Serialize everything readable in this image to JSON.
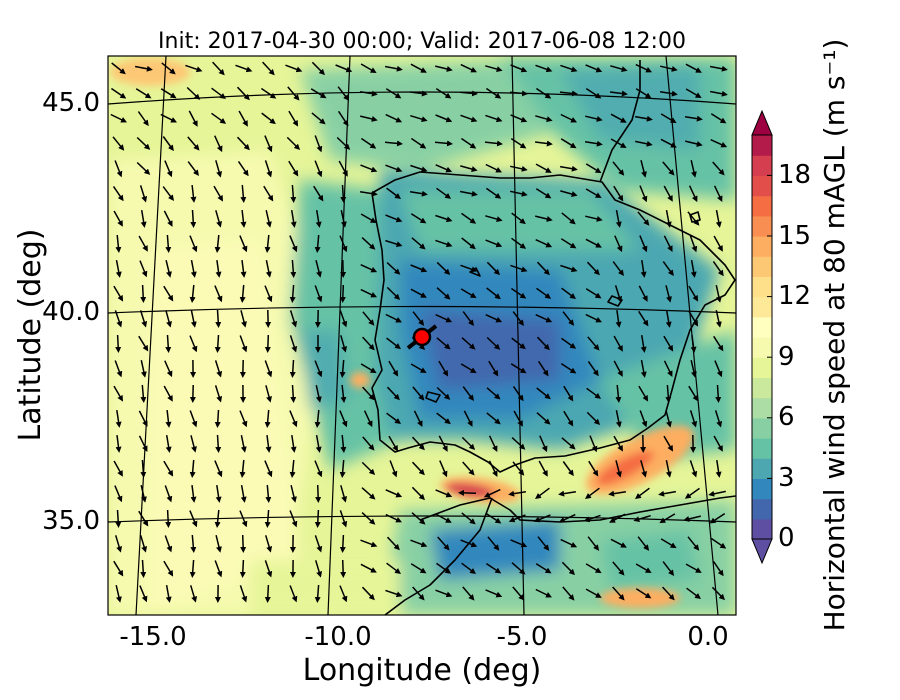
{
  "title": "Init: 2017-04-30 00:00; Valid: 2017-06-08 12:00",
  "x_axis": {
    "label": "Longitude (deg)",
    "ticks": [
      "-15.0",
      "-10.0",
      "-5.0",
      "0.0"
    ]
  },
  "y_axis": {
    "label": "Latitude (deg)",
    "ticks": [
      "45.0",
      "40.0",
      "35.0"
    ]
  },
  "colorbar": {
    "label": "Horizontal wind speed at 80 mAGL (m s⁻¹)",
    "ticks": [
      "0",
      "3",
      "6",
      "9",
      "12",
      "15",
      "18"
    ],
    "range": [
      0,
      20
    ],
    "extend": "both",
    "colormap": "Spectral_r",
    "colors": [
      "#5e4fa2",
      "#4367ad",
      "#3288bd",
      "#4ca7b1",
      "#66c2a5",
      "#88d0a4",
      "#abdda4",
      "#cbe99d",
      "#e6f598",
      "#f5faaf",
      "#ffffbf",
      "#fee999",
      "#fee08b",
      "#fdc874",
      "#fdae61",
      "#f88e52",
      "#f46d43",
      "#e24e4a",
      "#d53e4f",
      "#b31c4a",
      "#9e0142"
    ]
  },
  "map": {
    "region": "Iberian Peninsula and surroundings",
    "projection": "conic",
    "meridians_deg": [
      -15,
      -10,
      -5,
      0
    ],
    "parallels_deg": [
      35,
      40,
      45
    ],
    "marker": {
      "lon": -7.6,
      "lat": 39.3,
      "color": "#ff0000"
    },
    "wind_field_description": "Vectors show wind direction; background filled contours show wind speed",
    "high_wind_areas": [
      {
        "lon": -6.0,
        "lat": 35.8,
        "speed": 17
      },
      {
        "lon": -2.5,
        "lat": 36.5,
        "speed": 15
      },
      {
        "lon": -2.5,
        "lat": 33.0,
        "speed": 13
      }
    ]
  }
}
